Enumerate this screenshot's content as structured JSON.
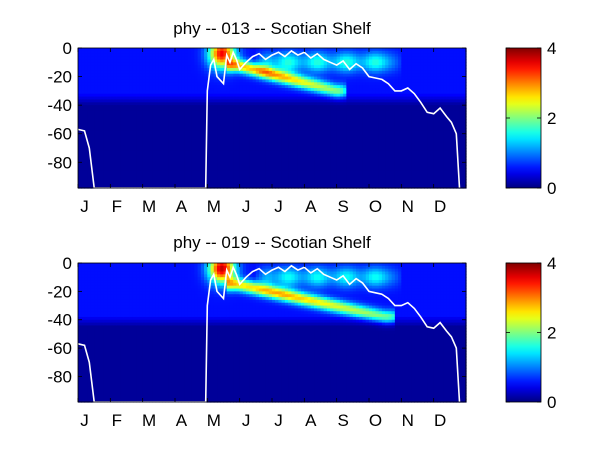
{
  "chart_data": [
    {
      "type": "heatmap",
      "title": "phy -- 013 -- Scotian Shelf",
      "xlabel": "",
      "ylabel": "",
      "x_tick_labels": [
        "J",
        "F",
        "M",
        "A",
        "M",
        "J",
        "J",
        "A",
        "S",
        "O",
        "N",
        "D"
      ],
      "xlim": [
        0,
        12
      ],
      "ylim": [
        -98,
        0
      ],
      "y_ticks": [
        0,
        -20,
        -40,
        -60,
        -80
      ],
      "colorbar": {
        "range": [
          0,
          4
        ],
        "ticks": [
          0,
          2,
          4
        ],
        "colormap": "jet"
      },
      "grid": false,
      "field_features": [
        {
          "kind": "background",
          "month_start": 0,
          "month_end": 12,
          "depth_top": 0,
          "depth_bottom": -98,
          "value": 0.1
        },
        {
          "kind": "upper_layer",
          "month_start": 0,
          "month_end": 12,
          "depth_top": 0,
          "depth_bottom": -40,
          "value": 0.45
        },
        {
          "kind": "spring_bloom",
          "month": 4.45,
          "depth": -4,
          "value": 3.0
        },
        {
          "kind": "subsurface_max",
          "month_start": 4.9,
          "month_end": 8.0,
          "depth_start": -12,
          "depth_end": -30,
          "value": 2.4
        },
        {
          "kind": "summer_surface",
          "month_start": 6.0,
          "month_end": 9.5,
          "depth": -10,
          "value": 1.1
        }
      ],
      "mixed_layer_depth": {
        "months": [
          0,
          0.2,
          0.35,
          0.5,
          3.95,
          4.0,
          4.1,
          4.2,
          4.3,
          4.5,
          4.6,
          4.7,
          4.8,
          4.9,
          5.0,
          5.2,
          5.4,
          5.6,
          5.8,
          6.0,
          6.2,
          6.4,
          6.6,
          6.8,
          7.0,
          7.2,
          7.4,
          7.6,
          7.8,
          8.0,
          8.2,
          8.4,
          8.6,
          8.8,
          9.0,
          9.2,
          9.4,
          9.6,
          9.8,
          10.0,
          10.2,
          10.4,
          10.6,
          10.8,
          11.0,
          11.2,
          11.4,
          11.55,
          11.7,
          11.8
        ],
        "depths": [
          -57,
          -58,
          -70,
          -98,
          -98,
          -30,
          -12,
          -8,
          -20,
          -25,
          -5,
          -10,
          -3,
          -8,
          -15,
          -10,
          -6,
          -4,
          -8,
          -5,
          -3,
          -6,
          -2,
          -5,
          -3,
          -7,
          -4,
          -8,
          -10,
          -12,
          -9,
          -15,
          -11,
          -14,
          -20,
          -21,
          -22,
          -25,
          -30,
          -30,
          -28,
          -32,
          -38,
          -45,
          -46,
          -42,
          -48,
          -52,
          -60,
          -98
        ]
      }
    },
    {
      "type": "heatmap",
      "title": "phy -- 019 -- Scotian Shelf",
      "xlabel": "",
      "ylabel": "",
      "x_tick_labels": [
        "J",
        "F",
        "M",
        "A",
        "M",
        "J",
        "J",
        "A",
        "S",
        "O",
        "N",
        "D"
      ],
      "xlim": [
        0,
        12
      ],
      "ylim": [
        -98,
        0
      ],
      "y_ticks": [
        0,
        -20,
        -40,
        -60,
        -80
      ],
      "colorbar": {
        "range": [
          0,
          4
        ],
        "ticks": [
          0,
          2,
          4
        ],
        "colormap": "jet"
      },
      "grid": false,
      "field_features": [
        {
          "kind": "background",
          "month_start": 0,
          "month_end": 12,
          "depth_top": 0,
          "depth_bottom": -98,
          "value": 0.1
        },
        {
          "kind": "upper_layer",
          "month_start": 0,
          "month_end": 12,
          "depth_top": 0,
          "depth_bottom": -45,
          "value": 0.45
        },
        {
          "kind": "spring_bloom",
          "month": 4.45,
          "depth": -4,
          "value": 3.2
        },
        {
          "kind": "subsurface_max",
          "month_start": 4.9,
          "month_end": 9.5,
          "depth_start": -15,
          "depth_end": -38,
          "value": 2.3
        },
        {
          "kind": "summer_surface",
          "month_start": 6.0,
          "month_end": 9.5,
          "depth": -10,
          "value": 1.0
        }
      ],
      "mixed_layer_depth": {
        "months": [
          0,
          0.2,
          0.35,
          0.5,
          3.95,
          4.0,
          4.1,
          4.2,
          4.3,
          4.5,
          4.6,
          4.7,
          4.8,
          4.9,
          5.0,
          5.2,
          5.4,
          5.6,
          5.8,
          6.0,
          6.2,
          6.4,
          6.6,
          6.8,
          7.0,
          7.2,
          7.4,
          7.6,
          7.8,
          8.0,
          8.2,
          8.4,
          8.6,
          8.8,
          9.0,
          9.2,
          9.4,
          9.6,
          9.8,
          10.0,
          10.2,
          10.4,
          10.6,
          10.8,
          11.0,
          11.2,
          11.4,
          11.55,
          11.7,
          11.8
        ],
        "depths": [
          -57,
          -58,
          -70,
          -98,
          -98,
          -30,
          -12,
          -8,
          -20,
          -25,
          -5,
          -10,
          -3,
          -8,
          -15,
          -10,
          -6,
          -4,
          -8,
          -5,
          -3,
          -6,
          -2,
          -5,
          -3,
          -7,
          -4,
          -8,
          -10,
          -12,
          -9,
          -15,
          -11,
          -14,
          -20,
          -21,
          -22,
          -25,
          -30,
          -30,
          -28,
          -32,
          -38,
          -45,
          -46,
          -42,
          -48,
          -52,
          -60,
          -98
        ]
      }
    }
  ]
}
